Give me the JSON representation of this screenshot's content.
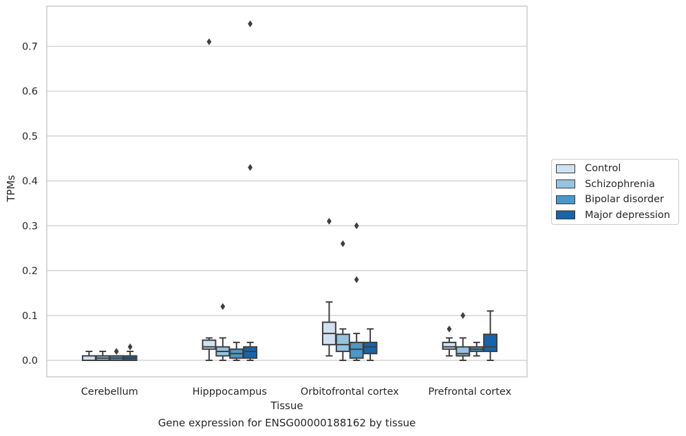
{
  "caption": "Gene expression for ENSG00000188162 by tissue",
  "chart_data": {
    "type": "box",
    "xlabel": "Tissue",
    "ylabel": "TPMs",
    "ylim": [
      -0.036,
      0.79
    ],
    "yticks": [
      "0.0",
      "0.1",
      "0.2",
      "0.3",
      "0.4",
      "0.5",
      "0.6",
      "0.7"
    ],
    "grid": true,
    "legend_position": "right, outside plot",
    "categories": [
      "Cerebellum",
      "Hipppocampus",
      "Orbitofrontal cortex",
      "Prefrontal cortex"
    ],
    "series": [
      {
        "name": "Control",
        "color": "#d0e1f2",
        "boxes": [
          {
            "whislo": 0.0,
            "q1": 0.0,
            "med": 0.0,
            "q3": 0.01,
            "whishi": 0.02,
            "fliers": []
          },
          {
            "whislo": 0.0,
            "q1": 0.025,
            "med": 0.03,
            "q3": 0.045,
            "whishi": 0.05,
            "fliers": [
              0.71
            ]
          },
          {
            "whislo": 0.01,
            "q1": 0.035,
            "med": 0.06,
            "q3": 0.085,
            "whishi": 0.13,
            "fliers": [
              0.31
            ]
          },
          {
            "whislo": 0.01,
            "q1": 0.025,
            "med": 0.03,
            "q3": 0.04,
            "whishi": 0.05,
            "fliers": [
              0.07
            ]
          }
        ]
      },
      {
        "name": "Schizophrenia",
        "color": "#94c4df",
        "boxes": [
          {
            "whislo": 0.0,
            "q1": 0.0,
            "med": 0.005,
            "q3": 0.01,
            "whishi": 0.02,
            "fliers": []
          },
          {
            "whislo": 0.0,
            "q1": 0.01,
            "med": 0.02,
            "q3": 0.03,
            "whishi": 0.05,
            "fliers": [
              0.12
            ]
          },
          {
            "whislo": 0.0,
            "q1": 0.02,
            "med": 0.035,
            "q3": 0.058,
            "whishi": 0.07,
            "fliers": [
              0.26
            ]
          },
          {
            "whislo": 0.0,
            "q1": 0.01,
            "med": 0.015,
            "q3": 0.03,
            "whishi": 0.05,
            "fliers": [
              0.1
            ]
          }
        ]
      },
      {
        "name": "Bipolar disorder",
        "color": "#4a98c9",
        "boxes": [
          {
            "whislo": 0.0,
            "q1": 0.0,
            "med": 0.005,
            "q3": 0.01,
            "whishi": 0.01,
            "fliers": [
              0.02
            ]
          },
          {
            "whislo": 0.0,
            "q1": 0.005,
            "med": 0.015,
            "q3": 0.025,
            "whishi": 0.04,
            "fliers": []
          },
          {
            "whislo": 0.0,
            "q1": 0.005,
            "med": 0.025,
            "q3": 0.04,
            "whishi": 0.06,
            "fliers": [
              0.3,
              0.18
            ]
          },
          {
            "whislo": 0.01,
            "q1": 0.02,
            "med": 0.025,
            "q3": 0.03,
            "whishi": 0.04,
            "fliers": []
          }
        ]
      },
      {
        "name": "Major depression",
        "color": "#1764ab",
        "boxes": [
          {
            "whislo": 0.0,
            "q1": 0.0,
            "med": 0.005,
            "q3": 0.01,
            "whishi": 0.02,
            "fliers": [
              0.03
            ]
          },
          {
            "whislo": 0.0,
            "q1": 0.005,
            "med": 0.02,
            "q3": 0.03,
            "whishi": 0.04,
            "fliers": [
              0.75,
              0.43
            ]
          },
          {
            "whislo": 0.0,
            "q1": 0.015,
            "med": 0.03,
            "q3": 0.04,
            "whishi": 0.07,
            "fliers": []
          },
          {
            "whislo": 0.0,
            "q1": 0.02,
            "med": 0.03,
            "q3": 0.058,
            "whishi": 0.11,
            "fliers": []
          }
        ]
      }
    ]
  }
}
